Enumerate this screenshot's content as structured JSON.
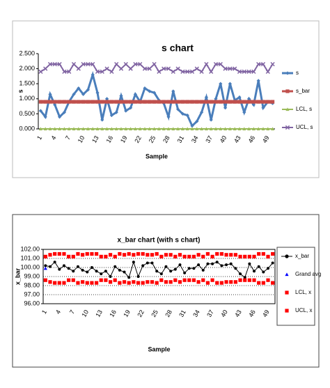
{
  "chart_data": [
    {
      "type": "line",
      "title": "s chart",
      "x_label": "Sample",
      "y_label": "s",
      "grid": false,
      "legend": "right",
      "categories": [
        1,
        null,
        null,
        4,
        null,
        null,
        7,
        null,
        null,
        10,
        null,
        null,
        13,
        null,
        null,
        16,
        null,
        null,
        19,
        null,
        null,
        22,
        null,
        null,
        25,
        null,
        null,
        28,
        null,
        null,
        31,
        null,
        null,
        34,
        null,
        null,
        37,
        null,
        null,
        40,
        null,
        null,
        43,
        null,
        null,
        46,
        null,
        null,
        49,
        null
      ],
      "ylim": [
        0,
        2.5
      ],
      "yticks": [
        {
          "value": 0,
          "label": "0.000"
        },
        {
          "value": 0.5,
          "label": "0.500"
        },
        {
          "value": 1,
          "label": "1.000"
        },
        {
          "value": 1.5,
          "label": "1.500"
        },
        {
          "value": 2,
          "label": "2.000"
        },
        {
          "value": 2.5,
          "label": "2.500"
        }
      ],
      "series": [
        {
          "name": "s",
          "color": "#4a7ebb",
          "marker": "diamond",
          "line": true,
          "width": 3,
          "values": [
            0.6,
            0.4,
            1.15,
            0.8,
            0.4,
            0.55,
            0.9,
            1.15,
            1.35,
            1.15,
            1.3,
            1.8,
            1.2,
            0.3,
            1.0,
            0.45,
            0.55,
            1.1,
            0.6,
            0.7,
            1.15,
            0.9,
            1.35,
            1.25,
            1.2,
            0.95,
            0.85,
            0.4,
            1.25,
            0.65,
            0.5,
            0.45,
            0.1,
            0.25,
            0.55,
            1.05,
            0.3,
            1.0,
            1.5,
            0.7,
            1.5,
            0.95,
            1.05,
            0.55,
            1.0,
            0.8,
            1.6,
            0.7,
            0.9,
            0.85
          ]
        },
        {
          "name": "s_bar",
          "color": "#c0504d",
          "marker": "square",
          "line": true,
          "width": 5,
          "values": [
            0.9,
            0.9,
            0.9,
            0.9,
            0.9,
            0.9,
            0.9,
            0.9,
            0.9,
            0.9,
            0.9,
            0.9,
            0.9,
            0.9,
            0.9,
            0.9,
            0.9,
            0.9,
            0.9,
            0.9,
            0.9,
            0.9,
            0.9,
            0.9,
            0.9,
            0.9,
            0.9,
            0.9,
            0.9,
            0.9,
            0.9,
            0.9,
            0.9,
            0.9,
            0.9,
            0.9,
            0.9,
            0.9,
            0.9,
            0.9,
            0.9,
            0.9,
            0.9,
            0.9,
            0.9,
            0.9,
            0.9,
            0.9,
            0.9,
            0.9
          ]
        },
        {
          "name": "LCL, s",
          "color": "#9bbb59",
          "marker": "triangle",
          "line": true,
          "width": 2,
          "values": [
            0,
            0,
            0,
            0,
            0,
            0,
            0,
            0,
            0,
            0,
            0,
            0,
            0,
            0,
            0,
            0,
            0,
            0,
            0,
            0,
            0,
            0,
            0,
            0,
            0,
            0,
            0,
            0,
            0,
            0,
            0,
            0,
            0,
            0,
            0,
            0,
            0,
            0,
            0,
            0,
            0,
            0,
            0,
            0,
            0,
            0,
            0,
            0,
            0,
            0
          ]
        },
        {
          "name": "UCL, s",
          "color": "#8064a2",
          "marker": "x",
          "line": true,
          "width": 2,
          "values": [
            1.9,
            2.0,
            2.15,
            2.15,
            2.15,
            1.9,
            1.9,
            2.15,
            2.0,
            2.15,
            2.15,
            2.15,
            1.9,
            1.9,
            2.0,
            1.9,
            2.15,
            2.0,
            2.15,
            2.0,
            2.15,
            2.15,
            2.0,
            2.0,
            2.15,
            1.9,
            2.0,
            2.0,
            1.9,
            2.0,
            1.9,
            1.9,
            1.9,
            2.0,
            1.9,
            2.15,
            1.9,
            2.15,
            2.15,
            2.0,
            2.0,
            2.0,
            1.9,
            1.9,
            1.9,
            1.9,
            2.15,
            2.15,
            1.9,
            2.15
          ]
        }
      ]
    },
    {
      "type": "line",
      "title": "x_bar chart (with s chart)",
      "x_label": "Sample",
      "y_label": "x_bar",
      "grid": true,
      "legend": "right",
      "categories": [
        1,
        null,
        null,
        4,
        null,
        null,
        7,
        null,
        null,
        10,
        null,
        null,
        13,
        null,
        null,
        16,
        null,
        null,
        19,
        null,
        null,
        22,
        null,
        null,
        25,
        null,
        null,
        28,
        null,
        null,
        31,
        null,
        null,
        34,
        null,
        null,
        37,
        null,
        null,
        40,
        null,
        null,
        43,
        null,
        null,
        46,
        null,
        null,
        49,
        null
      ],
      "ylim": [
        96,
        102
      ],
      "yticks": [
        {
          "value": 96,
          "label": "96.00"
        },
        {
          "value": 97,
          "label": "97.00"
        },
        {
          "value": 98,
          "label": "98.00"
        },
        {
          "value": 99,
          "label": "99.00"
        },
        {
          "value": 100,
          "label": "100.00"
        },
        {
          "value": 101,
          "label": "101.00"
        },
        {
          "value": 102,
          "label": "102.00"
        }
      ],
      "series": [
        {
          "name": "x_bar",
          "color": "#000000",
          "marker": "circle",
          "line": true,
          "width": 1,
          "values": [
            100.2,
            100.1,
            100.6,
            99.8,
            100.2,
            99.9,
            99.6,
            100.1,
            99.7,
            99.5,
            100.0,
            99.6,
            99.3,
            99.6,
            99.0,
            100.1,
            99.7,
            99.5,
            98.9,
            100.6,
            99.0,
            100.2,
            100.5,
            100.5,
            99.6,
            99.3,
            100.1,
            99.6,
            99.8,
            100.3,
            99.4,
            99.9,
            99.9,
            100.3,
            99.7,
            100.4,
            100.4,
            100.6,
            100.2,
            100.3,
            100.4,
            99.9,
            99.3,
            98.9,
            100.4,
            99.6,
            100.1,
            99.5,
            99.9,
            100.5
          ]
        },
        {
          "name": "Grand avg",
          "color": "#0000ff",
          "marker": "triangle",
          "line": false,
          "values": [
            99.9,
            null,
            null,
            null,
            null,
            null,
            null,
            null,
            null,
            null,
            null,
            null,
            null,
            null,
            null,
            null,
            null,
            null,
            null,
            null,
            null,
            null,
            null,
            null,
            null,
            null,
            null,
            null,
            null,
            null,
            null,
            null,
            null,
            null,
            null,
            null,
            null,
            null,
            null,
            null,
            null,
            null,
            null,
            null,
            null,
            null,
            null,
            null,
            null,
            null
          ]
        },
        {
          "name": "LCL, x",
          "color": "#ff0000",
          "marker": "square",
          "line": false,
          "values": [
            98.6,
            98.4,
            98.3,
            98.3,
            98.3,
            98.6,
            98.6,
            98.3,
            98.4,
            98.3,
            98.3,
            98.3,
            98.6,
            98.6,
            98.4,
            98.6,
            98.3,
            98.4,
            98.3,
            98.4,
            98.3,
            98.3,
            98.4,
            98.4,
            98.3,
            98.6,
            98.4,
            98.4,
            98.6,
            98.4,
            98.6,
            98.6,
            98.6,
            98.4,
            98.6,
            98.3,
            98.6,
            98.3,
            98.3,
            98.4,
            98.4,
            98.4,
            98.6,
            98.6,
            98.6,
            98.6,
            98.3,
            98.3,
            98.6,
            98.3
          ]
        },
        {
          "name": "UCL, x",
          "color": "#ff0000",
          "marker": "square",
          "line": false,
          "values": [
            101.2,
            101.4,
            101.5,
            101.5,
            101.5,
            101.2,
            101.2,
            101.5,
            101.4,
            101.5,
            101.5,
            101.5,
            101.2,
            101.2,
            101.4,
            101.2,
            101.5,
            101.4,
            101.5,
            101.4,
            101.5,
            101.5,
            101.4,
            101.4,
            101.5,
            101.2,
            101.4,
            101.4,
            101.2,
            101.4,
            101.2,
            101.2,
            101.2,
            101.4,
            101.2,
            101.5,
            101.2,
            101.5,
            101.5,
            101.4,
            101.4,
            101.4,
            101.2,
            101.2,
            101.2,
            101.2,
            101.5,
            101.5,
            101.2,
            101.5
          ]
        }
      ]
    }
  ]
}
